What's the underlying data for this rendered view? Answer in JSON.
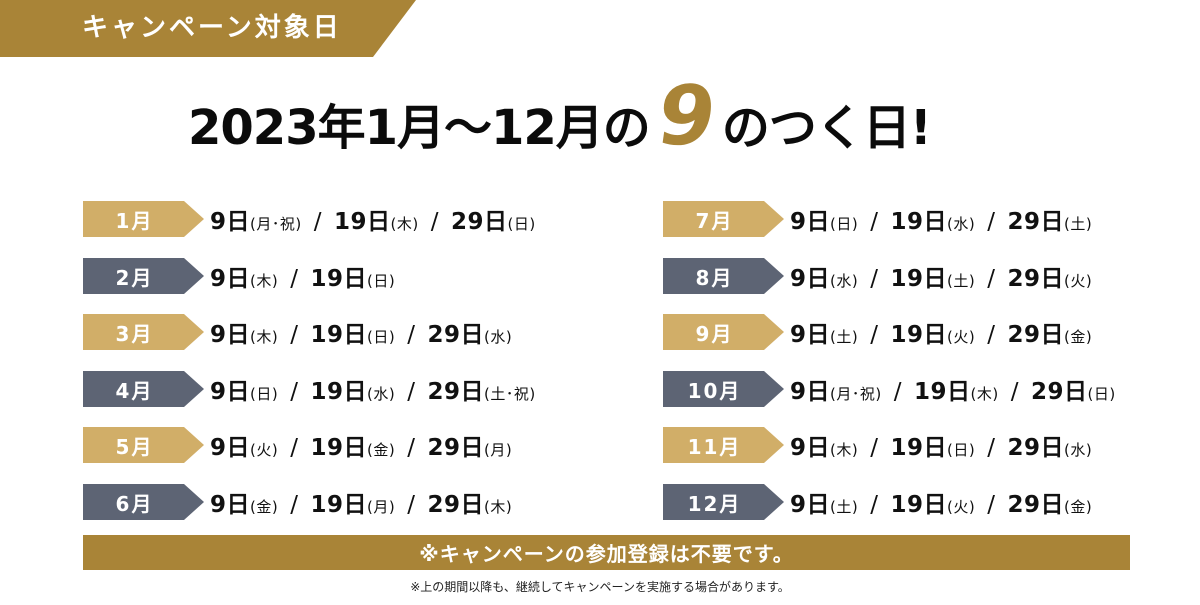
{
  "banner": {
    "label": "キャンペーン対象日"
  },
  "headline": {
    "prefix": "2023年1月～12月の",
    "accent_digit": "9",
    "suffix": "のつく日!"
  },
  "colors": {
    "gold": "#a98437",
    "tag_gold": "#d1ae68",
    "tag_slate": "#5d6474"
  },
  "months": [
    {
      "label": "1月",
      "style": "gold",
      "dates": [
        {
          "day": "9日",
          "dow": "(月･祝)"
        },
        {
          "day": "19日",
          "dow": "(木)"
        },
        {
          "day": "29日",
          "dow": "(日)"
        }
      ]
    },
    {
      "label": "2月",
      "style": "slate",
      "dates": [
        {
          "day": "9日",
          "dow": "(木)"
        },
        {
          "day": "19日",
          "dow": "(日)"
        }
      ]
    },
    {
      "label": "3月",
      "style": "gold",
      "dates": [
        {
          "day": "9日",
          "dow": "(木)"
        },
        {
          "day": "19日",
          "dow": "(日)"
        },
        {
          "day": "29日",
          "dow": "(水)"
        }
      ]
    },
    {
      "label": "4月",
      "style": "slate",
      "dates": [
        {
          "day": "9日",
          "dow": "(日)"
        },
        {
          "day": "19日",
          "dow": "(水)"
        },
        {
          "day": "29日",
          "dow": "(土･祝)"
        }
      ]
    },
    {
      "label": "5月",
      "style": "gold",
      "dates": [
        {
          "day": "9日",
          "dow": "(火)"
        },
        {
          "day": "19日",
          "dow": "(金)"
        },
        {
          "day": "29日",
          "dow": "(月)"
        }
      ]
    },
    {
      "label": "6月",
      "style": "slate",
      "dates": [
        {
          "day": "9日",
          "dow": "(金)"
        },
        {
          "day": "19日",
          "dow": "(月)"
        },
        {
          "day": "29日",
          "dow": "(木)"
        }
      ]
    },
    {
      "label": "7月",
      "style": "gold",
      "dates": [
        {
          "day": "9日",
          "dow": "(日)"
        },
        {
          "day": "19日",
          "dow": "(水)"
        },
        {
          "day": "29日",
          "dow": "(土)"
        }
      ]
    },
    {
      "label": "8月",
      "style": "slate",
      "dates": [
        {
          "day": "9日",
          "dow": "(水)"
        },
        {
          "day": "19日",
          "dow": "(土)"
        },
        {
          "day": "29日",
          "dow": "(火)"
        }
      ]
    },
    {
      "label": "9月",
      "style": "gold",
      "dates": [
        {
          "day": "9日",
          "dow": "(土)"
        },
        {
          "day": "19日",
          "dow": "(火)"
        },
        {
          "day": "29日",
          "dow": "(金)"
        }
      ]
    },
    {
      "label": "10月",
      "style": "slate",
      "dates": [
        {
          "day": "9日",
          "dow": "(月･祝)"
        },
        {
          "day": "19日",
          "dow": "(木)"
        },
        {
          "day": "29日",
          "dow": "(日)"
        }
      ]
    },
    {
      "label": "11月",
      "style": "gold",
      "dates": [
        {
          "day": "9日",
          "dow": "(木)"
        },
        {
          "day": "19日",
          "dow": "(日)"
        },
        {
          "day": "29日",
          "dow": "(水)"
        }
      ]
    },
    {
      "label": "12月",
      "style": "slate",
      "dates": [
        {
          "day": "9日",
          "dow": "(土)"
        },
        {
          "day": "19日",
          "dow": "(火)"
        },
        {
          "day": "29日",
          "dow": "(金)"
        }
      ]
    }
  ],
  "separator": "/",
  "notice": "※キャンペーンの参加登録は不要です。",
  "footnote": "※上の期間以降も、継続してキャンペーンを実施する場合があります。"
}
